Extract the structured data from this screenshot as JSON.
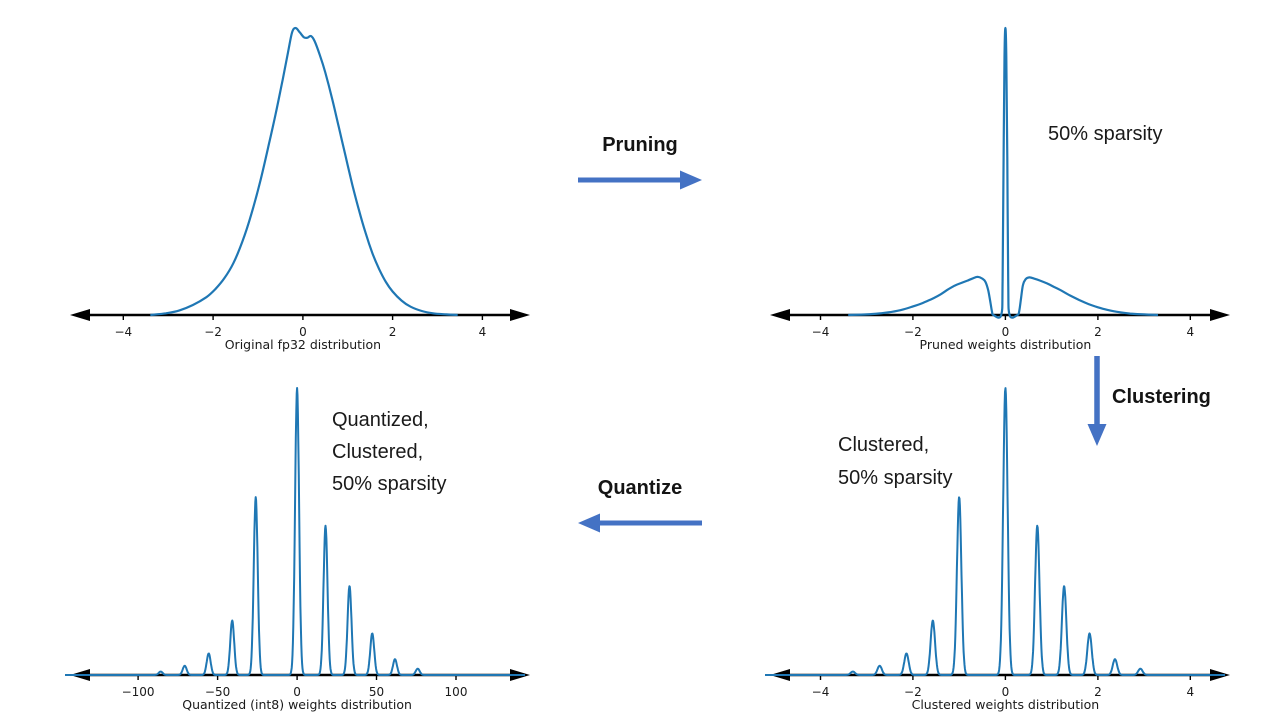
{
  "colors": {
    "curve": "#1f77b4",
    "flow_arrow": "#4472c4",
    "axis": "#000000",
    "tick_text": "#1a1a1a"
  },
  "flow": {
    "pruning": "Pruning",
    "clustering": "Clustering",
    "quantize": "Quantize"
  },
  "annotations": {
    "pruned": "50% sparsity",
    "clustered": [
      "Clustered,",
      "50% sparsity"
    ],
    "quantized": [
      "Quantized,",
      "Clustered,",
      "50% sparsity"
    ]
  },
  "chart_data": [
    {
      "id": "fp32",
      "type": "line",
      "title": "Original fp32 distribution",
      "tick_values": [
        -4,
        -2,
        0,
        2,
        4
      ],
      "tick_labels": [
        "−4",
        "−2",
        "0",
        "2",
        "4"
      ],
      "xlim": [
        -5.3,
        4.95
      ],
      "ylim": [
        0,
        1
      ],
      "grid": false,
      "legend": false,
      "profile": [
        [
          -3.4,
          0
        ],
        [
          -3.05,
          0.006
        ],
        [
          -2.75,
          0.016
        ],
        [
          -2.45,
          0.035
        ],
        [
          -2.15,
          0.062
        ],
        [
          -1.95,
          0.09
        ],
        [
          -1.75,
          0.128
        ],
        [
          -1.55,
          0.18
        ],
        [
          -1.35,
          0.255
        ],
        [
          -1.15,
          0.35
        ],
        [
          -0.95,
          0.465
        ],
        [
          -0.75,
          0.6
        ],
        [
          -0.6,
          0.705
        ],
        [
          -0.45,
          0.82
        ],
        [
          -0.33,
          0.915
        ],
        [
          -0.24,
          0.985
        ],
        [
          -0.16,
          1.0
        ],
        [
          -0.07,
          0.985
        ],
        [
          0.02,
          0.968
        ],
        [
          0.1,
          0.966
        ],
        [
          0.18,
          0.972
        ],
        [
          0.26,
          0.955
        ],
        [
          0.38,
          0.905
        ],
        [
          0.5,
          0.845
        ],
        [
          0.65,
          0.755
        ],
        [
          0.8,
          0.655
        ],
        [
          0.95,
          0.555
        ],
        [
          1.1,
          0.455
        ],
        [
          1.25,
          0.365
        ],
        [
          1.4,
          0.285
        ],
        [
          1.55,
          0.215
        ],
        [
          1.7,
          0.16
        ],
        [
          1.85,
          0.115
        ],
        [
          2.0,
          0.082
        ],
        [
          2.2,
          0.05
        ],
        [
          2.4,
          0.029
        ],
        [
          2.65,
          0.014
        ],
        [
          2.9,
          0.006
        ],
        [
          3.2,
          0.002
        ],
        [
          3.45,
          0
        ]
      ]
    },
    {
      "id": "pruned",
      "type": "line",
      "title": "Pruned weights distribution",
      "tick_values": [
        -4,
        -2,
        0,
        2,
        4
      ],
      "tick_labels": [
        "−4",
        "−2",
        "0",
        "2",
        "4"
      ],
      "xlim": [
        -5.2,
        4.75
      ],
      "ylim": [
        0,
        1
      ],
      "grid": false,
      "legend": false,
      "profile": [
        [
          -3.4,
          0
        ],
        [
          -3.0,
          0.002
        ],
        [
          -2.7,
          0.006
        ],
        [
          -2.45,
          0.011
        ],
        [
          -2.2,
          0.02
        ],
        [
          -2.0,
          0.03
        ],
        [
          -1.85,
          0.038
        ],
        [
          -1.7,
          0.048
        ],
        [
          -1.55,
          0.059
        ],
        [
          -1.4,
          0.072
        ],
        [
          -1.25,
          0.088
        ],
        [
          -1.1,
          0.102
        ],
        [
          -0.95,
          0.112
        ],
        [
          -0.82,
          0.12
        ],
        [
          -0.7,
          0.128
        ],
        [
          -0.6,
          0.133
        ],
        [
          -0.5,
          0.127
        ],
        [
          -0.43,
          0.115
        ],
        [
          -0.37,
          0.085
        ],
        [
          -0.32,
          0.04
        ],
        [
          -0.29,
          0.012
        ],
        [
          -0.26,
          0
        ],
        [
          -0.09,
          0
        ],
        [
          -0.06,
          0.12
        ],
        [
          -0.04,
          0.55
        ],
        [
          -0.02,
          0.9
        ],
        [
          0,
          1.0
        ],
        [
          0.02,
          0.9
        ],
        [
          0.04,
          0.55
        ],
        [
          0.06,
          0.12
        ],
        [
          0.09,
          0
        ],
        [
          0.26,
          0
        ],
        [
          0.3,
          0.015
        ],
        [
          0.34,
          0.06
        ],
        [
          0.38,
          0.105
        ],
        [
          0.44,
          0.125
        ],
        [
          0.52,
          0.131
        ],
        [
          0.62,
          0.127
        ],
        [
          0.75,
          0.12
        ],
        [
          0.9,
          0.11
        ],
        [
          1.05,
          0.098
        ],
        [
          1.2,
          0.086
        ],
        [
          1.4,
          0.068
        ],
        [
          1.6,
          0.052
        ],
        [
          1.8,
          0.038
        ],
        [
          2.0,
          0.027
        ],
        [
          2.2,
          0.018
        ],
        [
          2.45,
          0.01
        ],
        [
          2.7,
          0.005
        ],
        [
          3.0,
          0.002
        ],
        [
          3.3,
          0
        ]
      ]
    },
    {
      "id": "quantized",
      "type": "line",
      "title": "Quantized (int8) weights distribution",
      "tick_values": [
        -100,
        -50,
        0,
        50,
        100
      ],
      "tick_labels": [
        "−100",
        "−50",
        "0",
        "50",
        "100"
      ],
      "xlim": [
        -146,
        143.4
      ],
      "ylim": [
        0,
        1
      ],
      "grid": false,
      "legend": false,
      "spike_sigma": 1.25,
      "spikes": [
        [
          -85.8,
          0.012
        ],
        [
          -70.7,
          0.032
        ],
        [
          -55.6,
          0.075
        ],
        [
          -40.8,
          0.19
        ],
        [
          -26,
          0.62
        ],
        [
          0,
          1.0
        ],
        [
          17.9,
          0.52
        ],
        [
          33,
          0.31
        ],
        [
          47.3,
          0.145
        ],
        [
          61.6,
          0.055
        ],
        [
          75.9,
          0.022
        ]
      ]
    },
    {
      "id": "clustered",
      "type": "line",
      "title": "Clustered weights distribution",
      "tick_values": [
        -4,
        -2,
        0,
        2,
        4
      ],
      "tick_labels": [
        "−4",
        "−2",
        "0",
        "2",
        "4"
      ],
      "xlim": [
        -5.2,
        4.75
      ],
      "ylim": [
        0,
        1
      ],
      "grid": false,
      "legend": false,
      "spike_sigma": 0.048,
      "spikes": [
        [
          -3.3,
          0.012
        ],
        [
          -2.72,
          0.032
        ],
        [
          -2.14,
          0.075
        ],
        [
          -1.57,
          0.19
        ],
        [
          -1.0,
          0.62
        ],
        [
          0,
          1.0
        ],
        [
          0.69,
          0.52
        ],
        [
          1.27,
          0.31
        ],
        [
          1.82,
          0.145
        ],
        [
          2.37,
          0.055
        ],
        [
          2.92,
          0.022
        ]
      ]
    }
  ]
}
